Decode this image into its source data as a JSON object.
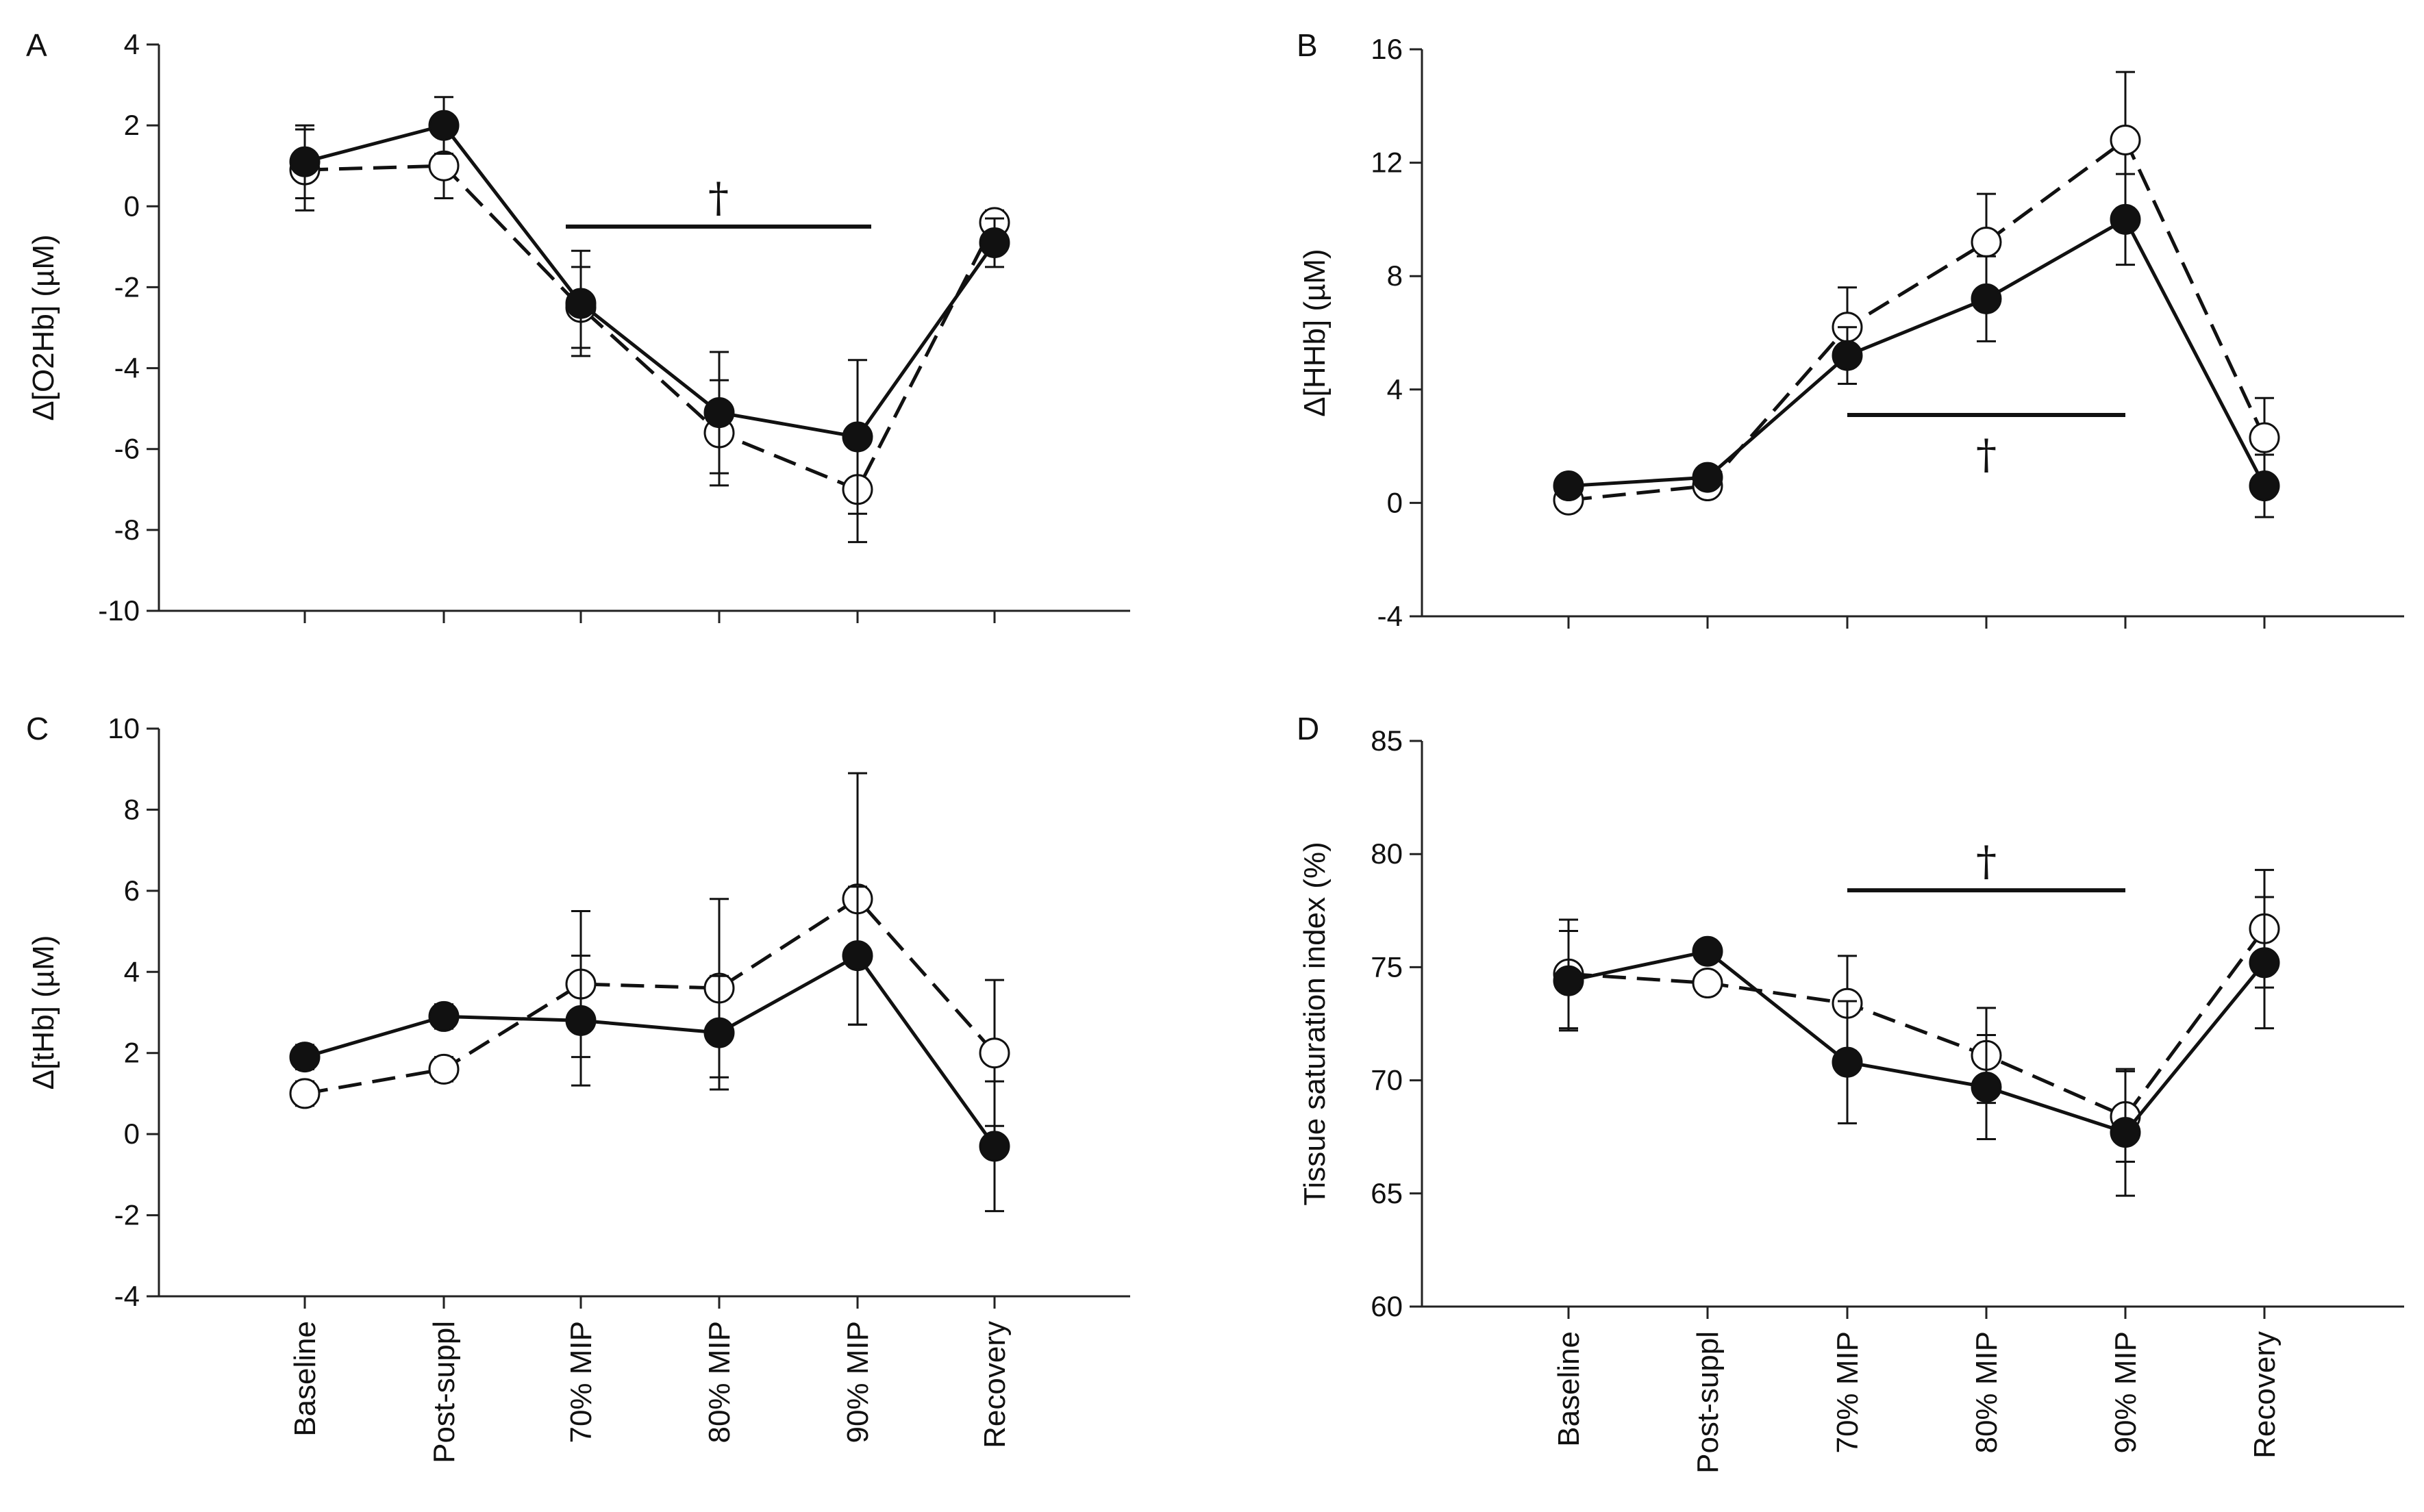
{
  "chart_data": [
    {
      "type": "line",
      "panel": "A",
      "ylabel": "Δ[O2Hb] (µM)",
      "ylim": [
        -10,
        4
      ],
      "yticks": [
        -10,
        -8,
        -6,
        -4,
        -2,
        0,
        2,
        4
      ],
      "categories": [
        "Baseline",
        "Post-suppl",
        "70% MIP",
        "80% MIP",
        "90% MIP",
        "Recovery"
      ],
      "series": [
        {
          "name": "filled-solid",
          "marker": "filled",
          "line": "solid",
          "values": [
            1.1,
            2.0,
            -2.4,
            -5.1,
            -5.7,
            -0.9
          ],
          "errors": [
            0.9,
            0.7,
            1.3,
            1.5,
            1.9,
            0.6
          ]
        },
        {
          "name": "open-dashed",
          "marker": "open",
          "line": "dashed",
          "values": [
            0.9,
            1.0,
            -2.5,
            -5.6,
            -7.0,
            -0.4
          ],
          "errors": [
            1.0,
            0.8,
            1.0,
            1.3,
            1.3,
            0.3
          ]
        }
      ],
      "significance": {
        "symbol": "†",
        "from": "70% MIP",
        "to": "90% MIP",
        "y": -0.5,
        "placement": "above"
      }
    },
    {
      "type": "line",
      "panel": "B",
      "ylabel": "Δ[HHb] (µM)",
      "ylim": [
        -4,
        16
      ],
      "yticks": [
        -4,
        0,
        4,
        8,
        12,
        16
      ],
      "categories": [
        "Baseline",
        "Post-suppl",
        "70% MIP",
        "80% MIP",
        "90% MIP",
        "Recovery"
      ],
      "series": [
        {
          "name": "filled-solid",
          "marker": "filled",
          "line": "solid",
          "values": [
            0.6,
            0.9,
            5.2,
            7.2,
            10.0,
            0.6
          ],
          "errors": [
            0.3,
            0.3,
            1.0,
            1.5,
            1.6,
            1.1
          ]
        },
        {
          "name": "open-dashed",
          "marker": "open",
          "line": "dashed",
          "values": [
            0.1,
            0.6,
            6.2,
            9.2,
            12.8,
            2.3
          ],
          "errors": [
            0.3,
            0.3,
            1.4,
            1.7,
            2.4,
            1.4
          ]
        }
      ],
      "significance": {
        "symbol": "†",
        "from": "70% MIP",
        "to": "90% MIP",
        "y": 3.1,
        "placement": "below"
      }
    },
    {
      "type": "line",
      "panel": "C",
      "ylabel": "Δ[tHb] (µM)",
      "ylim": [
        -4,
        10
      ],
      "yticks": [
        -4,
        -2,
        0,
        2,
        4,
        6,
        8,
        10
      ],
      "categories": [
        "Baseline",
        "Post-suppl",
        "70% MIP",
        "80% MIP",
        "90% MIP",
        "Recovery"
      ],
      "series": [
        {
          "name": "filled-solid",
          "marker": "filled",
          "line": "solid",
          "values": [
            1.9,
            2.9,
            2.8,
            2.5,
            4.4,
            -0.3
          ],
          "errors": [
            0.3,
            0.3,
            1.6,
            1.4,
            1.7,
            1.6
          ]
        },
        {
          "name": "open-dashed",
          "marker": "open",
          "line": "dashed",
          "values": [
            1.0,
            1.6,
            3.7,
            3.6,
            5.8,
            2.0
          ],
          "errors": [
            0.3,
            0.3,
            1.8,
            2.2,
            3.1,
            1.8
          ]
        }
      ]
    },
    {
      "type": "line",
      "panel": "D",
      "ylabel": "Tissue saturation index (%)",
      "ylim": [
        60,
        85
      ],
      "yticks": [
        60,
        65,
        70,
        75,
        80,
        85
      ],
      "categories": [
        "Baseline",
        "Post-suppl",
        "70% MIP",
        "80% MIP",
        "90% MIP",
        "Recovery"
      ],
      "series": [
        {
          "name": "filled-solid",
          "marker": "filled",
          "line": "solid",
          "values": [
            74.4,
            75.7,
            70.8,
            69.7,
            67.7,
            75.2
          ],
          "errors": [
            2.2,
            0.4,
            2.7,
            2.3,
            2.8,
            2.9
          ]
        },
        {
          "name": "open-dashed",
          "marker": "open",
          "line": "dashed",
          "values": [
            74.7,
            74.3,
            73.4,
            71.1,
            68.4,
            76.7
          ],
          "errors": [
            2.4,
            0.3,
            2.1,
            2.1,
            2.0,
            2.6
          ]
        }
      ],
      "significance": {
        "symbol": "†",
        "from": "70% MIP",
        "to": "90% MIP",
        "y": 78.4,
        "placement": "above"
      }
    }
  ]
}
